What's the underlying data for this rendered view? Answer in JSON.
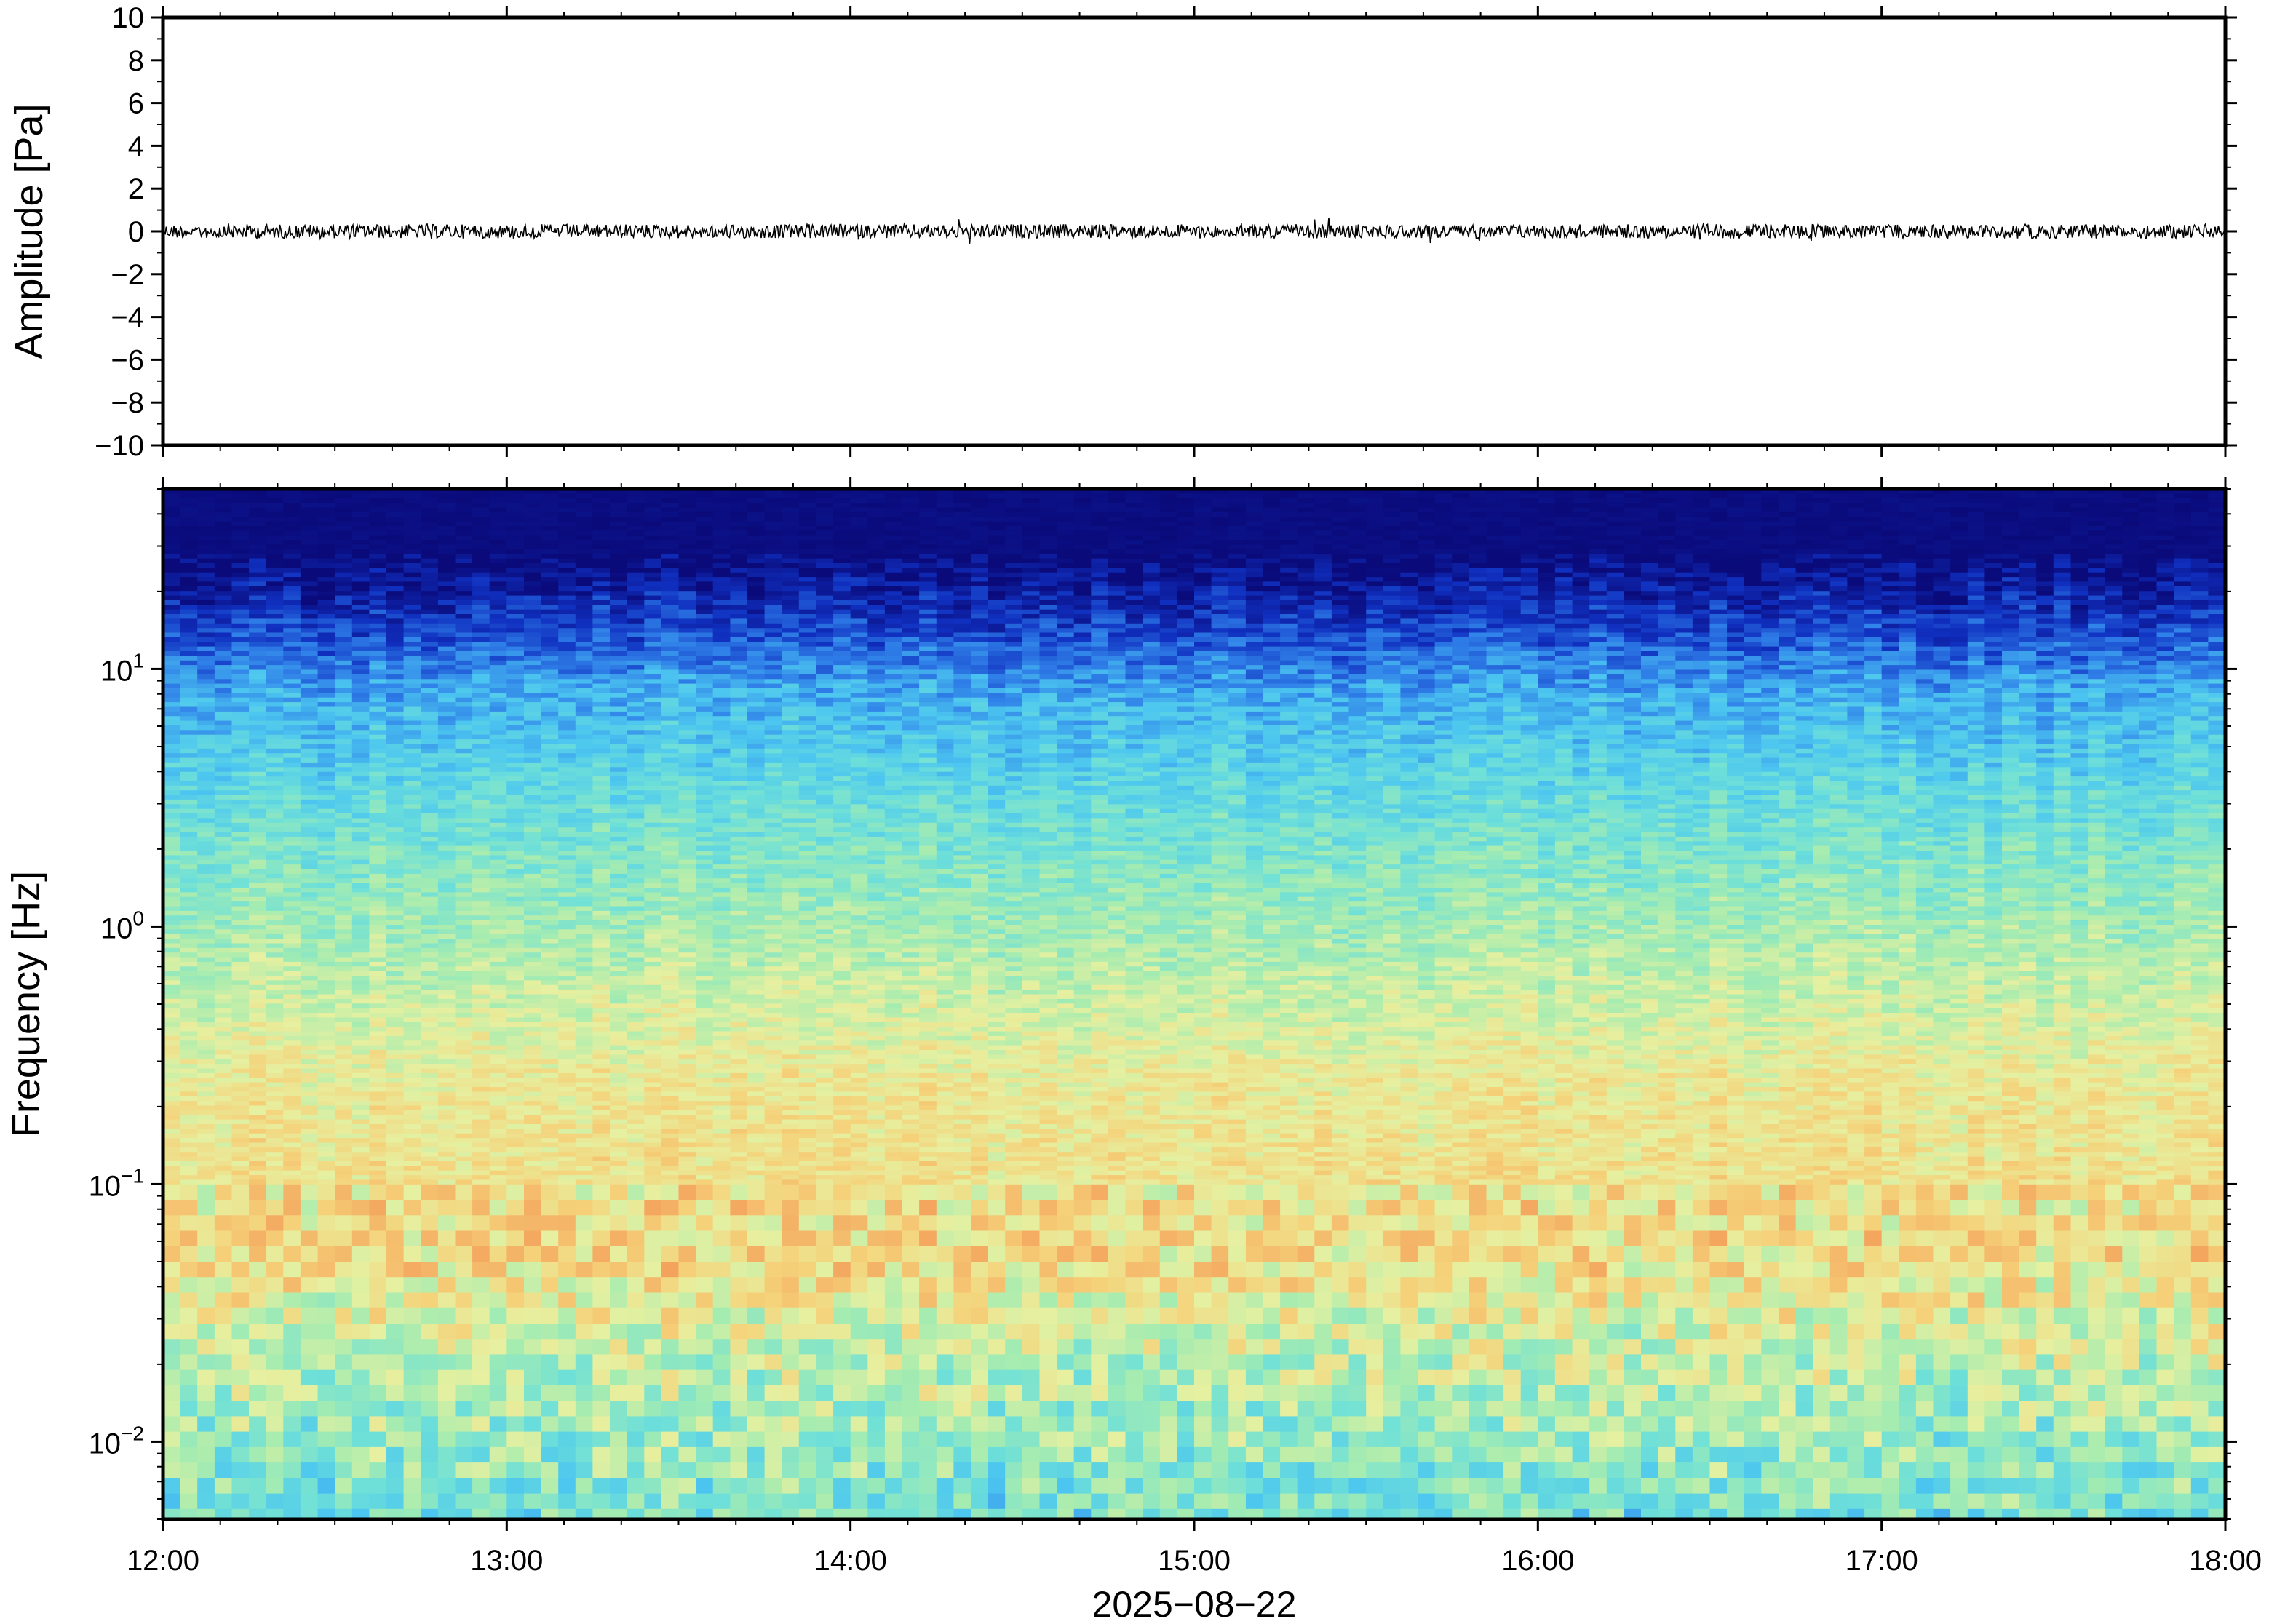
{
  "chart_data": [
    {
      "type": "line",
      "panel": "waveform",
      "ylabel": "Amplitude [Pa]",
      "ylim": [
        -10,
        10
      ],
      "y_ticks": [
        10,
        8,
        6,
        4,
        2,
        0,
        -2,
        -4,
        -6,
        -8,
        -10
      ],
      "y_tick_labels": [
        "10",
        "8",
        "6",
        "4",
        "2",
        "0",
        "−2",
        "−4",
        "−6",
        "−8",
        "−10"
      ],
      "x_range": [
        "12:00",
        "18:00"
      ],
      "series": [
        {
          "color": "#000000",
          "values_description_mean": 0,
          "peak_amplitude": 0.6
        }
      ]
    },
    {
      "type": "heatmap",
      "panel": "spectrogram",
      "ylabel": "Frequency [Hz]",
      "y_scale": "log",
      "ylim": [
        0.005,
        50
      ],
      "y_ticks": [
        0.01,
        0.1,
        1,
        10
      ],
      "y_tick_labels": [
        {
          "base": "10",
          "exp": "−2"
        },
        {
          "base": "10",
          "exp": "−1"
        },
        {
          "base": "10",
          "exp": "0"
        },
        {
          "base": "10",
          "exp": "1"
        }
      ],
      "x_ticks": [
        "12:00",
        "13:00",
        "14:00",
        "15:00",
        "16:00",
        "17:00",
        "18:00"
      ],
      "xlabel": "2025−08−22",
      "colormap": [
        "#0a0a7a",
        "#1030c0",
        "#2f7fe8",
        "#4cc6f0",
        "#6fe0d8",
        "#a6ecb0",
        "#e6f0a0",
        "#f5d27a",
        "#f4a860",
        "#ee8040"
      ]
    }
  ]
}
